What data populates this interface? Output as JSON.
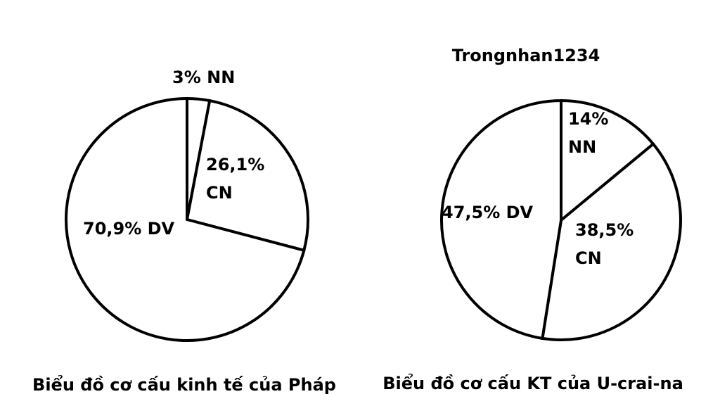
{
  "chart_data": [
    {
      "type": "pie",
      "title": "Biểu đồ cơ cấu kinh tế của Pháp",
      "categories": [
        "NN",
        "CN",
        "DV"
      ],
      "values": [
        3,
        26.1,
        70.9
      ],
      "value_labels": [
        "3%",
        "26,1%",
        "70,9%"
      ],
      "color": "#ffffff"
    },
    {
      "type": "pie",
      "title": "Biểu đồ cơ cấu KT của U-crai-na",
      "annotation": "Trongnhan1234",
      "categories": [
        "NN",
        "CN",
        "DV"
      ],
      "values": [
        14,
        38.5,
        47.5
      ],
      "value_labels": [
        "14%",
        "38,5%",
        "47,5%"
      ],
      "color": "#ffffff"
    }
  ]
}
